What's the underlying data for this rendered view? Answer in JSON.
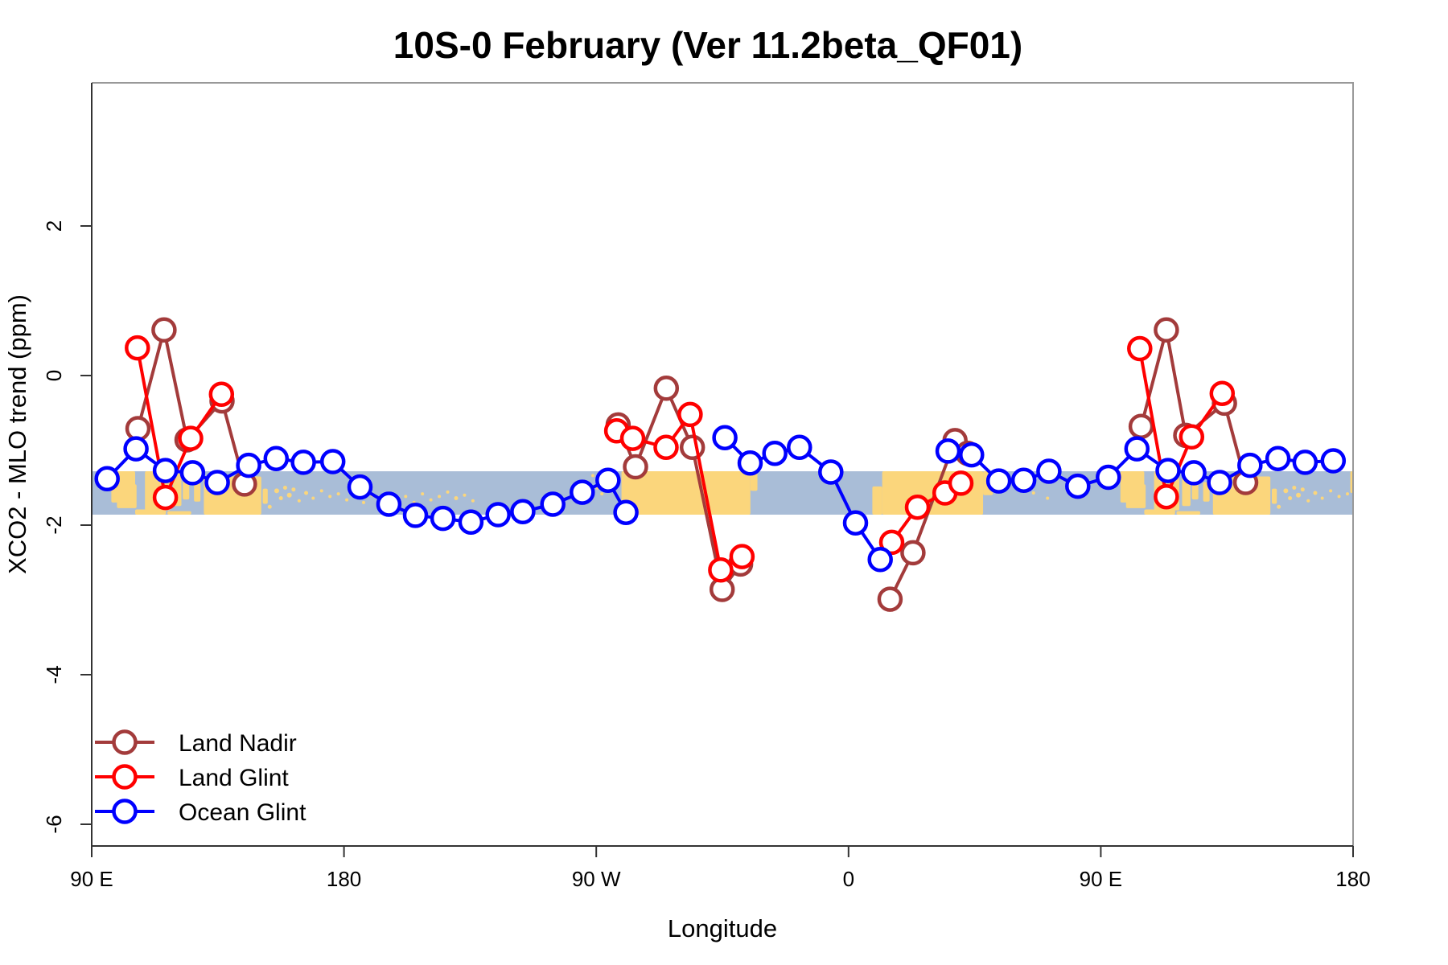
{
  "chart_data": {
    "type": "line",
    "title": "10S-0 February (Ver 11.2beta_QF01)",
    "xlabel": "Longitude",
    "ylabel": "XCO2 - MLO trend (ppm)",
    "grid": false,
    "legend_position": "bottom-left",
    "x_axis": {
      "span_deg": 450,
      "ticks": [
        {
          "offset": 0,
          "label": "90 E"
        },
        {
          "offset": 90,
          "label": "180"
        },
        {
          "offset": 180,
          "label": "90 W"
        },
        {
          "offset": 270,
          "label": "0"
        },
        {
          "offset": 360,
          "label": "90 E"
        },
        {
          "offset": 450,
          "label": "180"
        }
      ]
    },
    "y_axis": {
      "range": [
        -6.3,
        3.9
      ],
      "ticks": [
        {
          "value": 2,
          "label": "2"
        },
        {
          "value": 0,
          "label": "0"
        },
        {
          "value": -2,
          "label": "-2"
        },
        {
          "value": -4,
          "label": "-4"
        },
        {
          "value": -6,
          "label": "-6"
        }
      ]
    },
    "band": {
      "top_ppm": -1.28,
      "bottom_ppm": -1.86,
      "ocean_color": "#A9BDD7",
      "land_color": "#FBD67C",
      "land_patches": [
        [
          7,
          15.5,
          0,
          0.72
        ],
        [
          9,
          16,
          0.3,
          0.85
        ],
        [
          19,
          28,
          0,
          0.9
        ],
        [
          15.5,
          26.5,
          0.88,
          1
        ],
        [
          29,
          32,
          0.05,
          0.8
        ],
        [
          32.5,
          34.8,
          0.15,
          0.65
        ],
        [
          27,
          35.5,
          0.92,
          1
        ],
        [
          36.5,
          38.8,
          0.25,
          0.7
        ],
        [
          40,
          60.5,
          0.12,
          1
        ],
        [
          61,
          62.8,
          0.4,
          0.75
        ],
        [
          189,
          235,
          0,
          1
        ],
        [
          235,
          237.5,
          0,
          0.45
        ],
        [
          278.5,
          282,
          0.35,
          1
        ],
        [
          282,
          318,
          0,
          1
        ],
        [
          318,
          321.5,
          0,
          0.55
        ],
        [
          367,
          375.5,
          0,
          0.72
        ],
        [
          369,
          376,
          0.3,
          0.85
        ],
        [
          379,
          388,
          0,
          0.9
        ],
        [
          375.5,
          386.5,
          0.88,
          1
        ],
        [
          389,
          392,
          0.05,
          0.8
        ],
        [
          392.5,
          394.8,
          0.15,
          0.65
        ],
        [
          387,
          395.5,
          0.92,
          1
        ],
        [
          396.5,
          398.8,
          0.25,
          0.7
        ],
        [
          400,
          420.5,
          0.12,
          1
        ],
        [
          421,
          422.8,
          0.4,
          0.75
        ],
        [
          449,
          450,
          0,
          0.5
        ]
      ],
      "island_dots": [
        [
          63.5,
          0.82,
          2.5
        ],
        [
          66,
          0.45,
          3
        ],
        [
          67.5,
          0.62,
          2.5
        ],
        [
          69,
          0.38,
          2.5
        ],
        [
          70.5,
          0.55,
          3
        ],
        [
          72,
          0.42,
          2.5
        ],
        [
          74,
          0.68,
          2
        ],
        [
          76.5,
          0.5,
          2.5
        ],
        [
          79,
          0.62,
          2
        ],
        [
          82,
          0.45,
          2
        ],
        [
          85,
          0.58,
          2
        ],
        [
          88,
          0.52,
          2
        ],
        [
          91,
          0.66,
          2
        ],
        [
          94,
          0.48,
          2
        ],
        [
          97,
          0.72,
          2
        ],
        [
          100,
          0.55,
          2
        ],
        [
          103,
          0.62,
          2
        ],
        [
          106,
          0.5,
          2
        ],
        [
          109,
          0.68,
          2
        ],
        [
          112,
          0.58,
          2
        ],
        [
          115,
          0.72,
          2
        ],
        [
          118,
          0.52,
          2
        ],
        [
          121,
          0.66,
          2
        ],
        [
          124,
          0.58,
          2
        ],
        [
          127,
          0.48,
          2
        ],
        [
          130,
          0.62,
          2.5
        ],
        [
          133,
          0.55,
          2
        ],
        [
          136,
          0.68,
          2
        ],
        [
          178.8,
          0.1,
          2
        ],
        [
          180.5,
          0.38,
          2.5
        ],
        [
          182,
          0.52,
          2
        ],
        [
          336,
          0.5,
          2
        ],
        [
          341,
          0.62,
          2
        ],
        [
          423.5,
          0.82,
          2.5
        ],
        [
          426,
          0.45,
          3
        ],
        [
          427.5,
          0.62,
          2.5
        ],
        [
          429,
          0.38,
          2.5
        ],
        [
          430.5,
          0.55,
          3
        ],
        [
          432,
          0.42,
          2.5
        ],
        [
          434,
          0.68,
          2
        ],
        [
          436.5,
          0.5,
          2.5
        ],
        [
          439,
          0.62,
          2
        ],
        [
          442,
          0.45,
          2
        ],
        [
          445,
          0.58,
          2
        ],
        [
          448,
          0.52,
          2
        ]
      ]
    },
    "series": [
      {
        "name": "Land Nadir",
        "color": "#A33B3B",
        "segments": [
          [
            [
              16.5,
              -0.71
            ],
            [
              25.8,
              0.61
            ],
            [
              34.0,
              -0.86
            ],
            [
              46.5,
              -0.34
            ],
            [
              54.5,
              -1.45
            ]
          ],
          [
            [
              187.8,
              -0.66
            ],
            [
              194.0,
              -1.22
            ],
            [
              205.0,
              -0.17
            ],
            [
              214.3,
              -0.96
            ],
            [
              224.9,
              -2.86
            ],
            [
              231.5,
              -2.52
            ]
          ],
          [
            [
              284.8,
              -2.99
            ],
            [
              293.0,
              -2.37
            ],
            [
              308.0,
              -0.87
            ],
            [
              312.5,
              -1.04
            ]
          ],
          [
            [
              374.4,
              -0.68
            ],
            [
              383.4,
              0.61
            ],
            [
              390.3,
              -0.8
            ],
            [
              404.1,
              -0.37
            ],
            [
              411.7,
              -1.43
            ]
          ]
        ]
      },
      {
        "name": "Land Glint",
        "color": "#FF0000",
        "segments": [
          [
            [
              16.3,
              0.37
            ],
            [
              26.3,
              -1.63
            ],
            [
              35.3,
              -0.84
            ],
            [
              46.3,
              -0.25
            ]
          ],
          [
            [
              187.3,
              -0.74
            ],
            [
              193.0,
              -0.84
            ],
            [
              204.9,
              -0.96
            ],
            [
              213.5,
              -0.52
            ],
            [
              224.4,
              -2.6
            ],
            [
              232.0,
              -2.42
            ]
          ],
          [
            [
              285.4,
              -2.23
            ],
            [
              294.6,
              -1.76
            ],
            [
              304.4,
              -1.57
            ],
            [
              310.1,
              -1.44
            ]
          ],
          [
            [
              373.9,
              0.36
            ],
            [
              383.4,
              -1.62
            ],
            [
              392.4,
              -0.82
            ],
            [
              403.3,
              -0.24
            ]
          ]
        ]
      },
      {
        "name": "Ocean Glint",
        "color": "#0000FF",
        "segments": [
          [
            [
              5.5,
              -1.38
            ],
            [
              15.8,
              -0.98
            ],
            [
              26.3,
              -1.27
            ],
            [
              36.0,
              -1.3
            ],
            [
              44.8,
              -1.43
            ],
            [
              56.0,
              -1.2
            ],
            [
              65.8,
              -1.11
            ],
            [
              75.5,
              -1.16
            ],
            [
              86.0,
              -1.15
            ],
            [
              95.7,
              -1.49
            ],
            [
              106.0,
              -1.72
            ],
            [
              115.5,
              -1.87
            ],
            [
              125.3,
              -1.91
            ],
            [
              135.3,
              -1.96
            ],
            [
              145.0,
              -1.86
            ],
            [
              153.8,
              -1.82
            ],
            [
              164.5,
              -1.72
            ],
            [
              175.0,
              -1.56
            ],
            [
              184.2,
              -1.4
            ],
            [
              190.6,
              -1.83
            ]
          ],
          [
            [
              225.9,
              -0.83
            ],
            [
              234.9,
              -1.17
            ],
            [
              243.7,
              -1.04
            ],
            [
              252.5,
              -0.96
            ],
            [
              263.7,
              -1.29
            ],
            [
              272.5,
              -1.97
            ],
            [
              281.3,
              -2.46
            ]
          ],
          [
            [
              305.5,
              -1.01
            ],
            [
              313.9,
              -1.06
            ],
            [
              323.6,
              -1.41
            ],
            [
              332.5,
              -1.4
            ],
            [
              341.5,
              -1.28
            ],
            [
              351.8,
              -1.48
            ],
            [
              362.7,
              -1.36
            ],
            [
              372.9,
              -0.98
            ],
            [
              384.0,
              -1.27
            ],
            [
              393.2,
              -1.3
            ],
            [
              402.4,
              -1.43
            ],
            [
              413.2,
              -1.2
            ],
            [
              423.2,
              -1.11
            ],
            [
              432.9,
              -1.16
            ],
            [
              442.9,
              -1.14
            ]
          ]
        ]
      }
    ]
  }
}
